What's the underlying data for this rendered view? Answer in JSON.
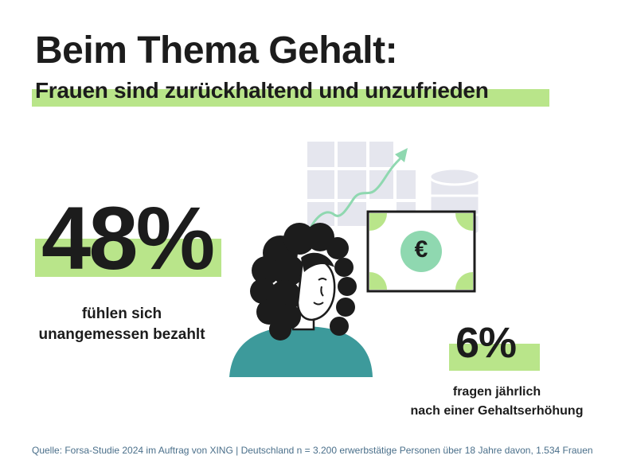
{
  "header": {
    "title": "Beim Thema Gehalt:",
    "subtitle": "Frauen sind zurückhaltend und unzufrieden"
  },
  "stat_primary": {
    "value": "48%",
    "line1": "fühlen sich",
    "line2": "unangemessen bezahlt"
  },
  "stat_secondary": {
    "value": "6%",
    "line1": "fragen jährlich",
    "line2": "nach einer Gehaltserhöhung"
  },
  "footer": {
    "source": "Quelle: Forsa-Studie 2024 im Auftrag von XING | Deutschland n = 3.200 erwerbstätige Personen über 18 Jahre davon, 1.534 Frauen"
  },
  "illustration": {
    "currency_symbol": "€",
    "icons": [
      "grid-icon",
      "coin-stack-icon",
      "trend-arrow-icon",
      "banknote-icon",
      "woman-icon"
    ]
  },
  "colors": {
    "accent_green": "#b9e58a",
    "teal": "#3d9a9b",
    "mint": "#8fd8b0",
    "text_dark": "#1c1c1c",
    "grid_gray": "#e5e6ee",
    "source_blue": "#4a6f8a"
  }
}
